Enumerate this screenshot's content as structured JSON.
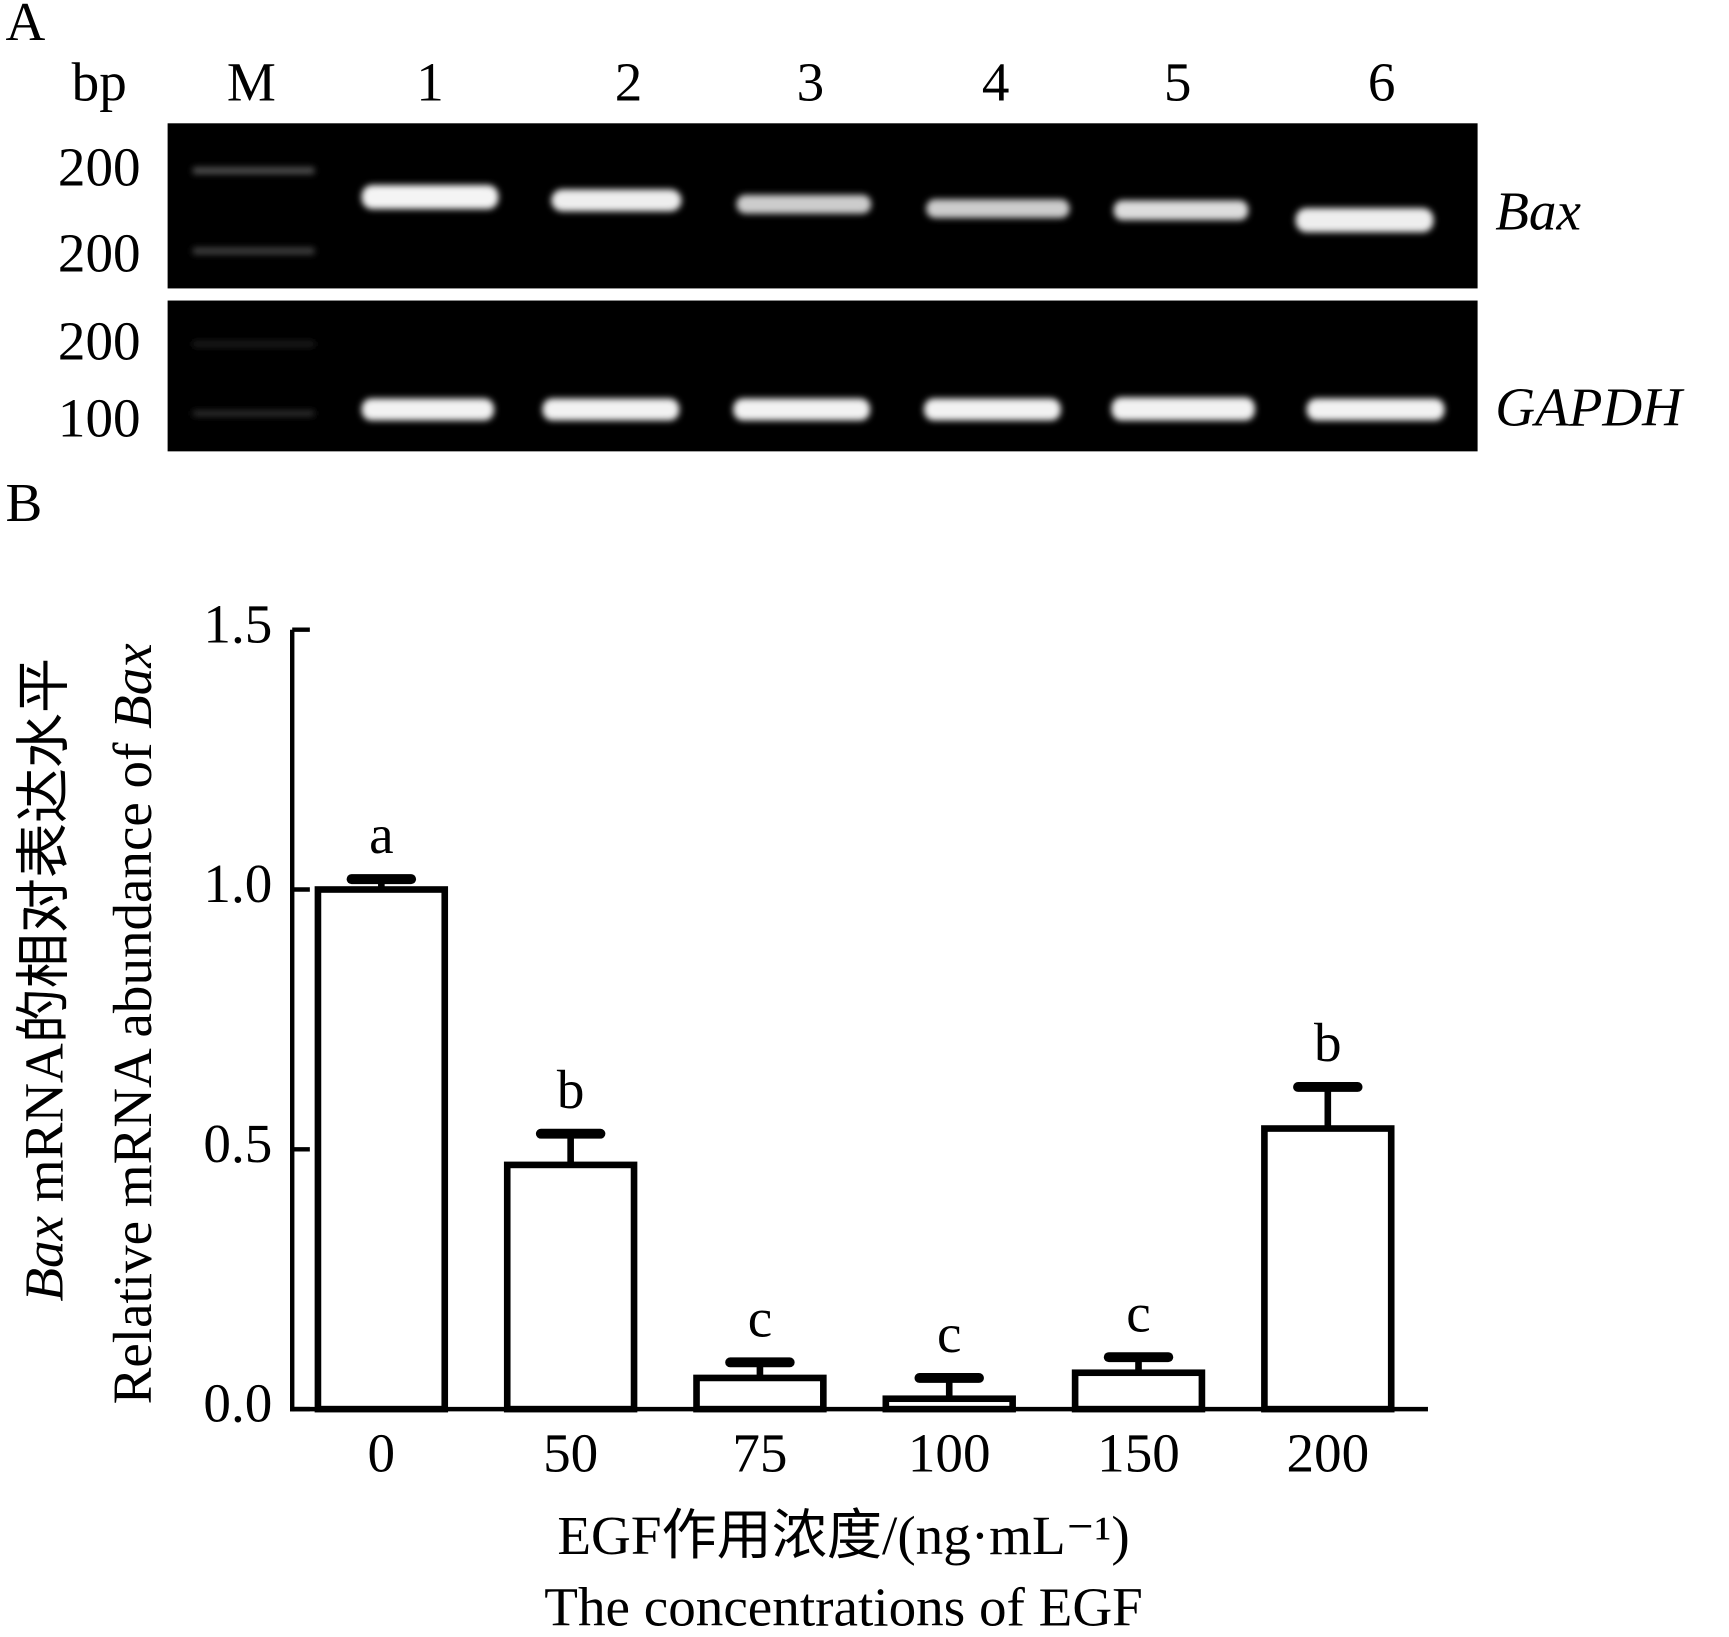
{
  "panel_a": {
    "label": "A",
    "bp_label": "bp",
    "lanes": [
      "M",
      "1",
      "2",
      "3",
      "4",
      "5",
      "6"
    ],
    "bax_sizes": [
      "200",
      "200"
    ],
    "gapdh_sizes": [
      "200",
      "100"
    ],
    "genes": [
      "Bax",
      "GAPDH"
    ]
  },
  "panel_b_label": "B",
  "chart_data": {
    "type": "bar",
    "categories": [
      "0",
      "50",
      "75",
      "100",
      "150",
      "200"
    ],
    "values": [
      1.0,
      0.47,
      0.06,
      0.02,
      0.07,
      0.54
    ],
    "errors": [
      0.02,
      0.06,
      0.03,
      0.04,
      0.03,
      0.08
    ],
    "annotations": [
      "a",
      "b",
      "c",
      "c",
      "c",
      "b"
    ],
    "color": "#ffffff",
    "edge_color": "#000000",
    "ylim": [
      0,
      1.5
    ],
    "yticks": [
      {
        "value": 0,
        "label": "0.0"
      },
      0.5,
      {
        "value": 1,
        "label": "1.0"
      },
      1.5
    ],
    "y_label_cn": {
      "italic": "Bax",
      "text": " mRNA的相对表达水平"
    },
    "y_label_en": {
      "text": "Relative mRNA abundance of ",
      "italic": "Bax"
    },
    "x_label_cn": "EGF作用浓度/(ng·mL⁻¹)",
    "x_label_en": "The concentrations of EGF"
  }
}
